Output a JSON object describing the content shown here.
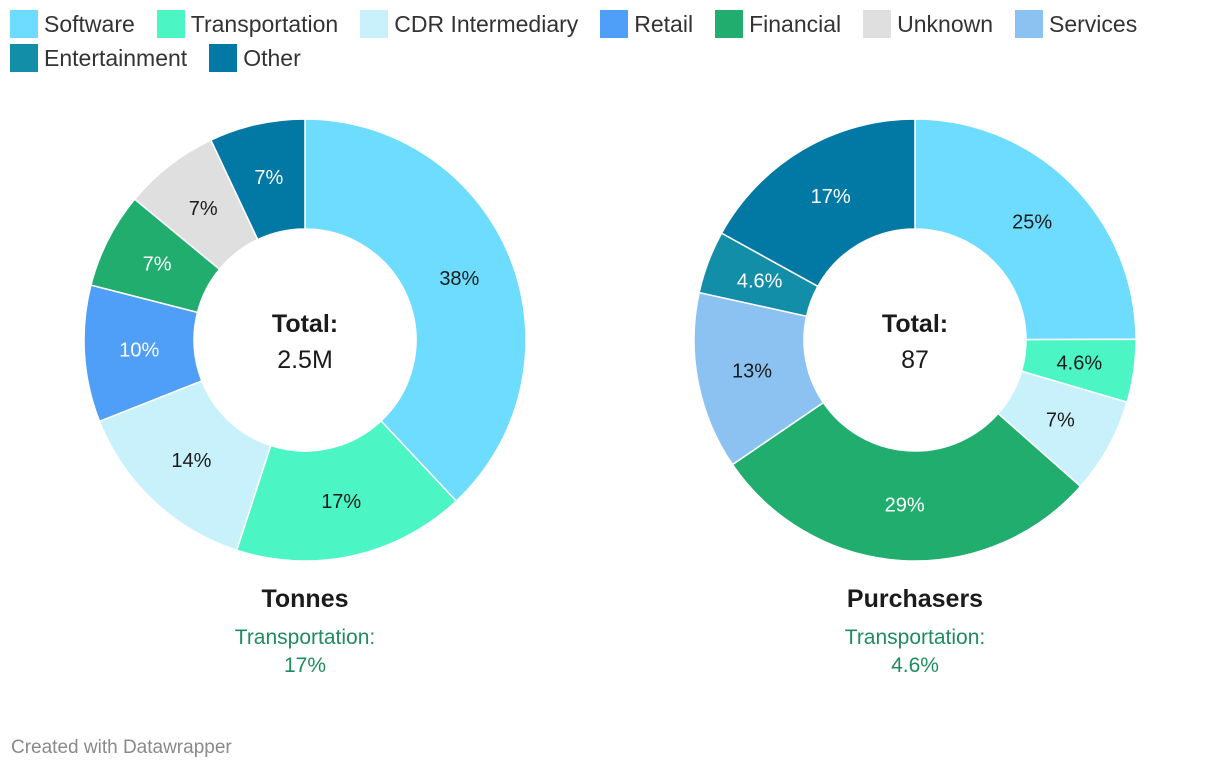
{
  "legend": [
    {
      "label": "Software",
      "color": "#6ddcff"
    },
    {
      "label": "Transportation",
      "color": "#4bf6c4"
    },
    {
      "label": "CDR Intermediary",
      "color": "#c9f1fc"
    },
    {
      "label": "Retail",
      "color": "#4f9ef8"
    },
    {
      "label": "Financial",
      "color": "#20ad6e"
    },
    {
      "label": "Unknown",
      "color": "#dfdfdf"
    },
    {
      "label": "Services",
      "color": "#8cc2f1"
    },
    {
      "label": "Entertainment",
      "color": "#138ea8"
    },
    {
      "label": "Other",
      "color": "#0279a4"
    }
  ],
  "chart_data": [
    {
      "type": "donut",
      "title": "Tonnes",
      "center_label": "Total:",
      "center_value": "2.5M",
      "highlight_label": "Transportation:",
      "highlight_value": "17%",
      "slices": [
        {
          "category": "Software",
          "value": 38,
          "label": "38%"
        },
        {
          "category": "Transportation",
          "value": 17,
          "label": "17%"
        },
        {
          "category": "CDR Intermediary",
          "value": 14,
          "label": "14%"
        },
        {
          "category": "Retail",
          "value": 10,
          "label": "10%"
        },
        {
          "category": "Financial",
          "value": 7,
          "label": "7%"
        },
        {
          "category": "Unknown",
          "value": 7,
          "label": "7%"
        },
        {
          "category": "Other",
          "value": 7,
          "label": "7%"
        }
      ]
    },
    {
      "type": "donut",
      "title": "Purchasers",
      "center_label": "Total:",
      "center_value": "87",
      "highlight_label": "Transportation:",
      "highlight_value": "4.6%",
      "slices": [
        {
          "category": "Software",
          "value": 25,
          "label": "25%"
        },
        {
          "category": "Transportation",
          "value": 4.6,
          "label": "4.6%"
        },
        {
          "category": "CDR Intermediary",
          "value": 7,
          "label": "7%"
        },
        {
          "category": "Financial",
          "value": 29,
          "label": "29%"
        },
        {
          "category": "Services",
          "value": 13,
          "label": "13%"
        },
        {
          "category": "Entertainment",
          "value": 4.6,
          "label": "4.6%"
        },
        {
          "category": "Other",
          "value": 17,
          "label": "17%"
        }
      ]
    }
  ],
  "footer": "Created with Datawrapper"
}
